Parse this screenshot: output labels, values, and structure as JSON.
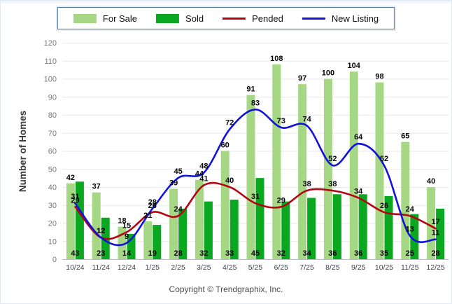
{
  "legend": {
    "items": [
      {
        "label": "For Sale",
        "kind": "bar",
        "color": "#a6d785"
      },
      {
        "label": "Sold",
        "kind": "bar",
        "color": "#0aa820"
      },
      {
        "label": "Pended",
        "kind": "line",
        "color": "#b20613"
      },
      {
        "label": "New Listing",
        "kind": "line",
        "color": "#1212d9"
      }
    ]
  },
  "y_axis": {
    "title": "Number of Homes",
    "ticks": [
      0,
      10,
      20,
      30,
      40,
      50,
      60,
      70,
      80,
      90,
      100,
      110,
      120
    ]
  },
  "footer": {
    "copyright": "Copyright © Trendgraphix, Inc."
  },
  "chart_data": {
    "type": "bar",
    "subtype": "grouped-bars-with-smooth-lines",
    "title": "",
    "xlabel": "",
    "ylabel": "Number of Homes",
    "ylim": [
      0,
      120
    ],
    "grid": "horizontal",
    "legend_position": "top",
    "categories": [
      "10/24",
      "11/24",
      "12/24",
      "1/25",
      "2/25",
      "3/25",
      "4/25",
      "5/25",
      "6/25",
      "7/25",
      "8/25",
      "9/25",
      "10/25",
      "11/25",
      "12/25"
    ],
    "series": [
      {
        "name": "For Sale",
        "type": "bar",
        "color": "#a6d785",
        "label_position": "above-bar",
        "values": [
          42,
          37,
          18,
          21,
          39,
          44,
          60,
          91,
          108,
          97,
          100,
          104,
          98,
          65,
          40
        ]
      },
      {
        "name": "Sold",
        "type": "bar",
        "color": "#0aa820",
        "label_position": "bottom-of-bar",
        "values": [
          43,
          23,
          14,
          19,
          28,
          32,
          33,
          45,
          32,
          34,
          36,
          36,
          35,
          25,
          28
        ]
      },
      {
        "name": "Pended",
        "type": "line",
        "color": "#b20613",
        "label_position": "above-point",
        "values": [
          29,
          12,
          15,
          26,
          24,
          41,
          40,
          31,
          29,
          38,
          38,
          34,
          26,
          24,
          17
        ]
      },
      {
        "name": "New Listing",
        "type": "line",
        "color": "#1212d9",
        "label_position": "above-point",
        "values": [
          31,
          12,
          9,
          28,
          45,
          48,
          72,
          83,
          73,
          74,
          52,
          64,
          52,
          13,
          11
        ]
      }
    ]
  }
}
